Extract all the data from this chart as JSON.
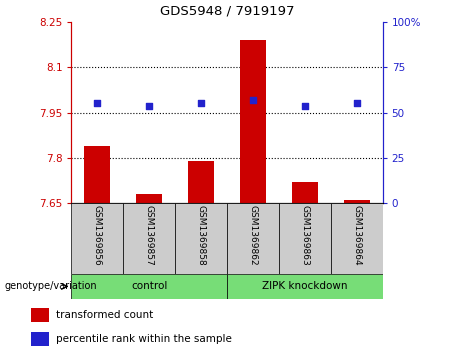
{
  "title": "GDS5948 / 7919197",
  "samples": [
    "GSM1369856",
    "GSM1369857",
    "GSM1369858",
    "GSM1369862",
    "GSM1369863",
    "GSM1369864"
  ],
  "bar_values": [
    7.84,
    7.68,
    7.79,
    8.19,
    7.72,
    7.66
  ],
  "bar_baseline": 7.65,
  "scatter_values": [
    7.98,
    7.97,
    7.98,
    7.99,
    7.97,
    7.98
  ],
  "ylim_left": [
    7.65,
    8.25
  ],
  "ylim_right": [
    0,
    100
  ],
  "yticks_left": [
    7.65,
    7.8,
    7.95,
    8.1,
    8.25
  ],
  "yticks_right": [
    0,
    25,
    50,
    75,
    100
  ],
  "ytick_labels_left": [
    "7.65",
    "7.8",
    "7.95",
    "8.1",
    "8.25"
  ],
  "ytick_labels_right": [
    "0",
    "25",
    "50",
    "75",
    "100%"
  ],
  "hlines": [
    7.8,
    7.95,
    8.1
  ],
  "groups": [
    {
      "label": "control",
      "start": 0,
      "end": 3
    },
    {
      "label": "ZIPK knockdown",
      "start": 3,
      "end": 6
    }
  ],
  "group_label_prefix": "genotype/variation",
  "bar_color": "#CC0000",
  "scatter_color": "#2222CC",
  "bar_width": 0.5,
  "legend_labels": [
    "transformed count",
    "percentile rank within the sample"
  ],
  "plot_bg": "#ffffff",
  "left_tick_color": "#CC0000",
  "right_tick_color": "#2222CC",
  "sample_box_color": "#cccccc",
  "group_box_color": "#77DD77"
}
